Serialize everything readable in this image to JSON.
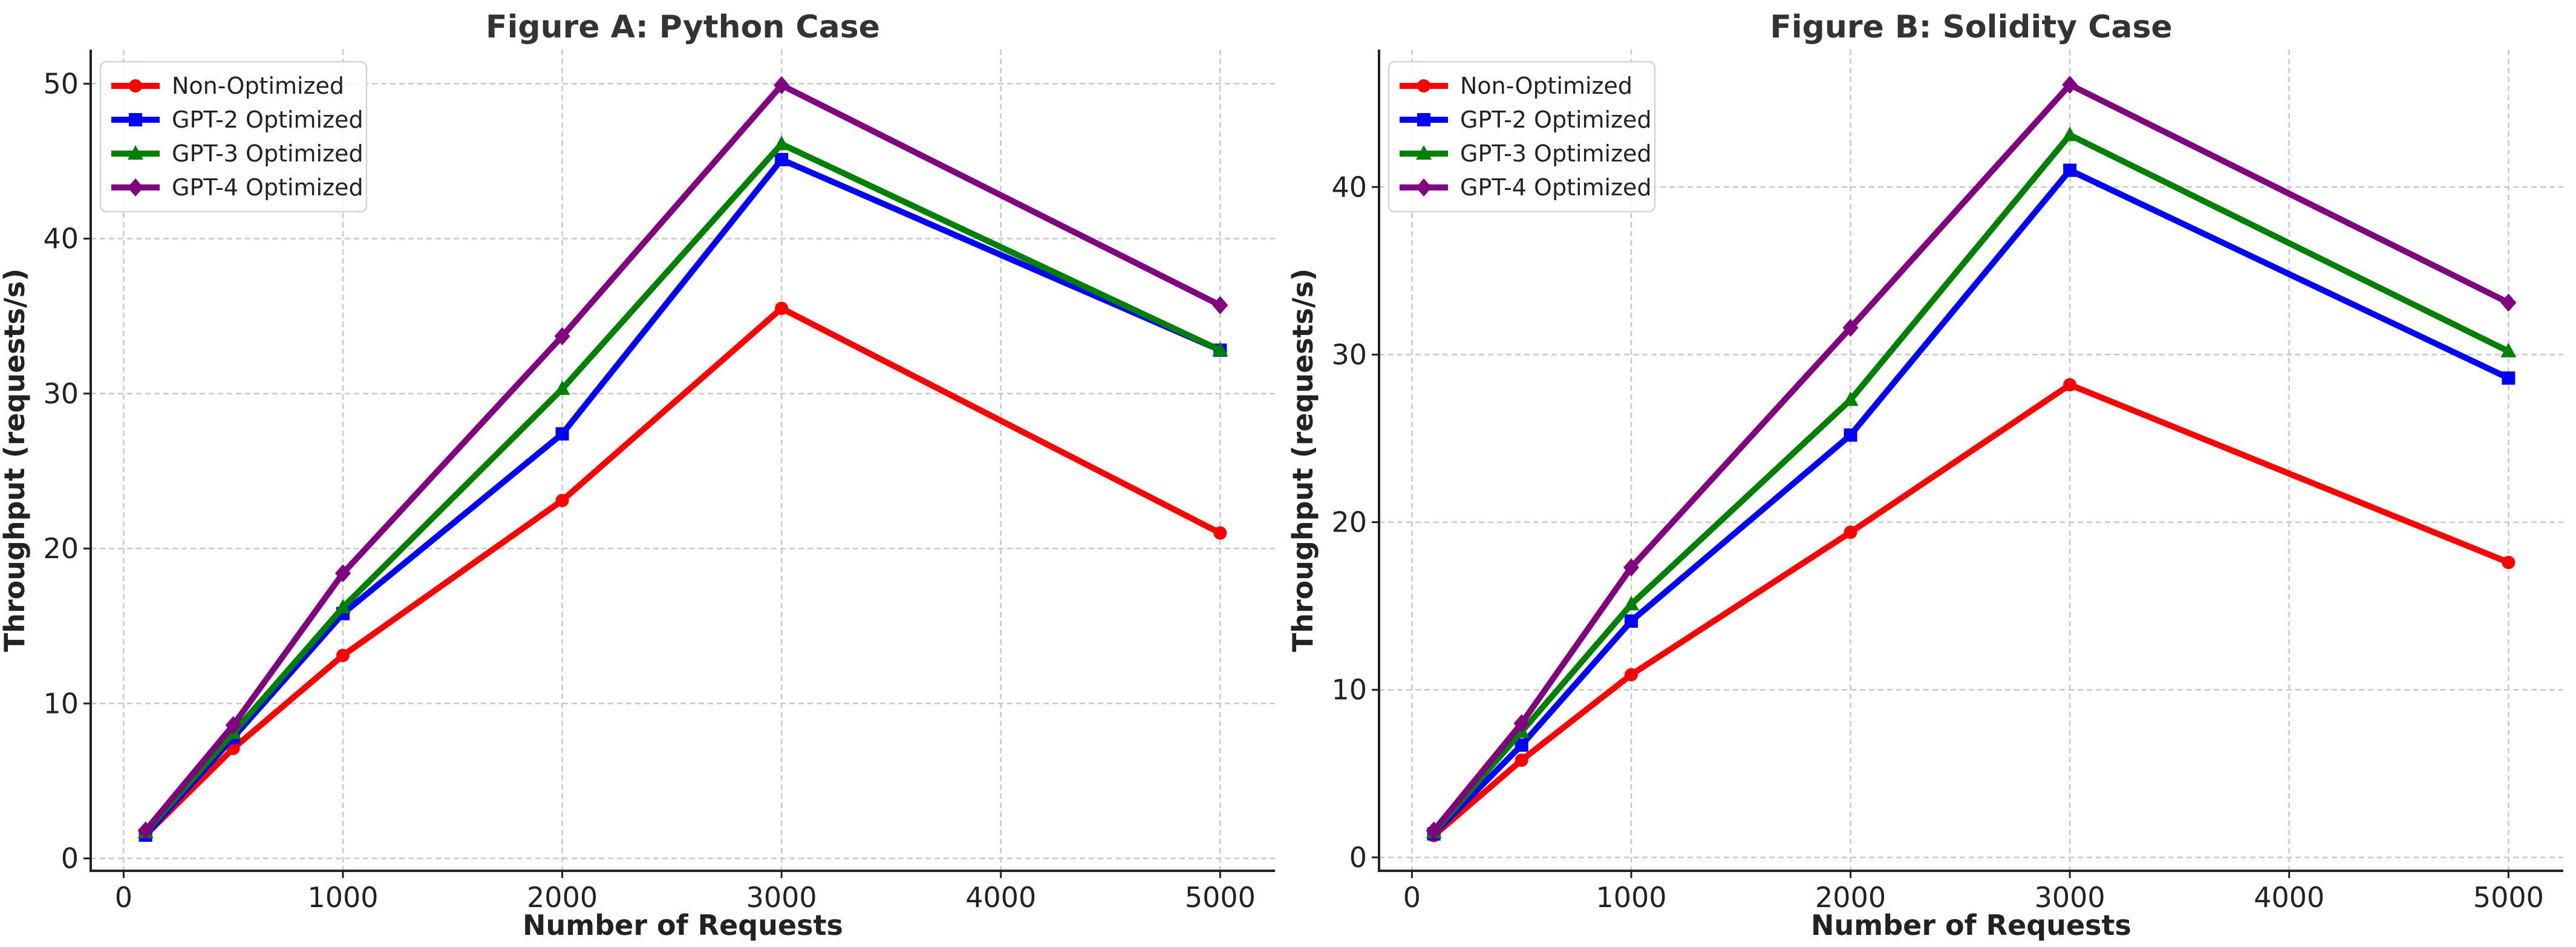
{
  "chart_data": [
    {
      "type": "line",
      "title": "Figure A: Python Case",
      "xlabel": "Number of Requests",
      "ylabel": "Throughput (requests/s)",
      "x": [
        100,
        500,
        1000,
        2000,
        3000,
        5000
      ],
      "xlim": [
        -150,
        5250
      ],
      "ylim": [
        -0.8,
        52.2
      ],
      "xticks": [
        0,
        1000,
        2000,
        3000,
        4000,
        5000
      ],
      "yticks": [
        0,
        10,
        20,
        30,
        40,
        50
      ],
      "grid": true,
      "legend_position": "top-left",
      "series": [
        {
          "name": "Non-Optimized",
          "color": "#ff0000",
          "marker": "circle",
          "values": [
            1.5,
            7.1,
            13.1,
            23.1,
            35.5,
            21.0
          ]
        },
        {
          "name": "GPT-2 Optimized",
          "color": "#0000ff",
          "marker": "square",
          "values": [
            1.5,
            7.8,
            15.8,
            27.4,
            45.1,
            32.8
          ]
        },
        {
          "name": "GPT-3 Optimized",
          "color": "#008000",
          "marker": "triangle",
          "values": [
            1.7,
            8.1,
            16.2,
            30.3,
            46.1,
            32.8
          ]
        },
        {
          "name": "GPT-4 Optimized",
          "color": "#800080",
          "marker": "diamond",
          "values": [
            1.8,
            8.6,
            18.4,
            33.7,
            49.9,
            35.7
          ]
        }
      ]
    },
    {
      "type": "line",
      "title": "Figure B: Solidity Case",
      "xlabel": "Number of Requests",
      "ylabel": "Throughput (requests/s)",
      "x": [
        100,
        500,
        1000,
        2000,
        3000,
        5000
      ],
      "xlim": [
        -150,
        5250
      ],
      "ylim": [
        -0.8,
        48.2
      ],
      "xticks": [
        0,
        1000,
        2000,
        3000,
        4000,
        5000
      ],
      "yticks": [
        0,
        10,
        20,
        30,
        40
      ],
      "grid": true,
      "legend_position": "top-left",
      "series": [
        {
          "name": "Non-Optimized",
          "color": "#ff0000",
          "marker": "circle",
          "values": [
            1.3,
            5.8,
            10.9,
            19.4,
            28.2,
            17.6
          ]
        },
        {
          "name": "GPT-2 Optimized",
          "color": "#0000ff",
          "marker": "square",
          "values": [
            1.4,
            6.7,
            14.1,
            25.2,
            41.0,
            28.6
          ]
        },
        {
          "name": "GPT-3 Optimized",
          "color": "#008000",
          "marker": "triangle",
          "values": [
            1.5,
            7.5,
            15.1,
            27.3,
            43.1,
            30.2
          ]
        },
        {
          "name": "GPT-4 Optimized",
          "color": "#800080",
          "marker": "diamond",
          "values": [
            1.6,
            8.0,
            17.3,
            31.6,
            46.1,
            33.1
          ]
        }
      ]
    }
  ]
}
